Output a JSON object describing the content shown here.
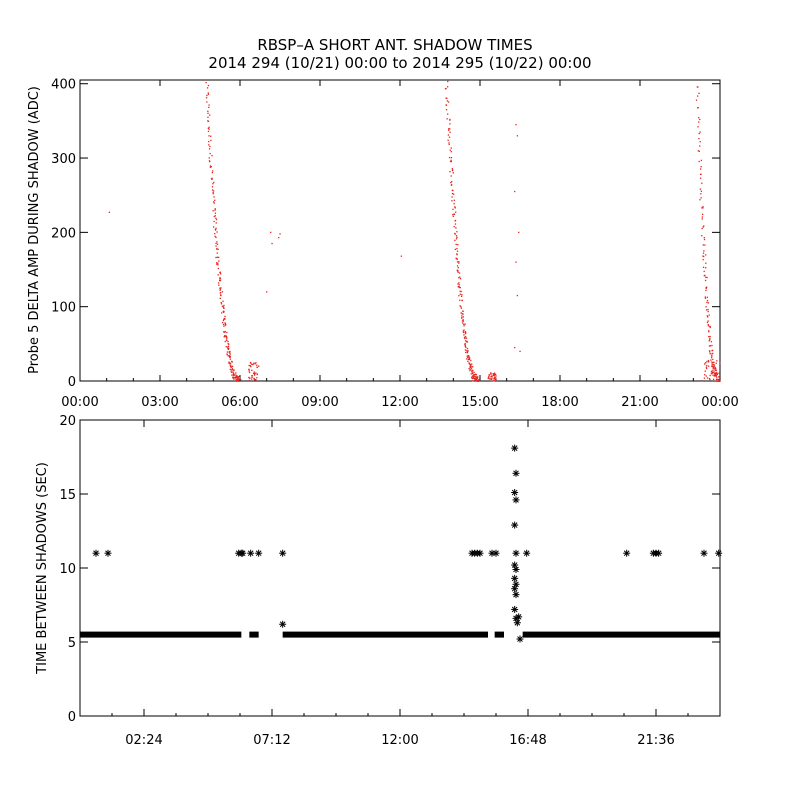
{
  "title": "RBSP–A SHORT ANT. SHADOW TIMES",
  "subtitle": "2014 294 (10/21) 00:00 to 2014 295 (10/22) 00:00",
  "colors": {
    "red": "#e8241e",
    "black": "#000000"
  },
  "chart_data": [
    {
      "type": "scatter",
      "ylabel": "Probe 5 DELTA AMP DURING SHADOW (ADC)",
      "xlim_hours": [
        0,
        24
      ],
      "ylim": [
        0,
        405
      ],
      "x_tick_labels": [
        "00:00",
        "03:00",
        "06:00",
        "09:00",
        "12:00",
        "15:00",
        "18:00",
        "21:00",
        "00:00"
      ],
      "y_ticks": [
        0,
        100,
        200,
        300,
        400
      ],
      "series": [
        {
          "color": "red",
          "curves": [
            {
              "x0": 4.75,
              "x1": 6.0,
              "ymax": 400,
              "n": 240,
              "power": 2.2
            },
            {
              "x0": 13.75,
              "x1": 14.95,
              "ymax": 400,
              "n": 240,
              "power": 2.2
            },
            {
              "x0": 23.15,
              "x1": 24.0,
              "ymax": 400,
              "n": 160,
              "power": 2.4
            }
          ],
          "isolated_points": [
            [
              1.1,
              227
            ],
            [
              7.15,
              200
            ],
            [
              7.2,
              185
            ],
            [
              7.45,
              193
            ],
            [
              7.5,
              198
            ],
            [
              7.0,
              120
            ],
            [
              12.05,
              168
            ],
            [
              16.35,
              345
            ],
            [
              16.4,
              330
            ],
            [
              16.3,
              255
            ],
            [
              16.45,
              200
            ],
            [
              16.35,
              160
            ],
            [
              16.4,
              115
            ],
            [
              16.3,
              45
            ],
            [
              16.5,
              40
            ],
            [
              15.35,
              8
            ],
            [
              6.55,
              10
            ],
            [
              6.7,
              20
            ],
            [
              6.45,
              5
            ]
          ],
          "bottom_clusters": [
            {
              "x0": 6.3,
              "x1": 6.65,
              "ymax": 25
            },
            {
              "x0": 15.3,
              "x1": 15.6,
              "ymax": 12
            },
            {
              "x0": 23.3,
              "x1": 24.0,
              "ymax": 30
            }
          ]
        }
      ]
    },
    {
      "type": "scatter",
      "ylabel": "TIME BETWEEN SHADOWS (SEC)",
      "xlim_hours": [
        0,
        24
      ],
      "ylim": [
        0,
        20
      ],
      "x_ticks": [
        2.4,
        7.2,
        12.0,
        16.8,
        21.6
      ],
      "x_tick_labels": [
        "02:24",
        "07:12",
        "12:00",
        "16:48",
        "21:36"
      ],
      "y_ticks": [
        0,
        5,
        10,
        15,
        20
      ],
      "series": [
        {
          "color": "black",
          "baseline": {
            "y": 5.5,
            "segments": [
              [
                0.0,
                6.05
              ],
              [
                6.35,
                6.7
              ],
              [
                7.6,
                15.3
              ],
              [
                15.55,
                15.9
              ],
              [
                16.6,
                24.0
              ]
            ]
          },
          "points": [
            [
              0.6,
              11
            ],
            [
              1.05,
              11
            ],
            [
              5.95,
              11
            ],
            [
              6.05,
              11
            ],
            [
              6.1,
              11
            ],
            [
              6.4,
              11
            ],
            [
              6.7,
              11
            ],
            [
              7.6,
              11
            ],
            [
              7.6,
              6.2
            ],
            [
              14.7,
              11
            ],
            [
              14.8,
              11
            ],
            [
              14.9,
              11
            ],
            [
              15.0,
              11
            ],
            [
              15.45,
              11
            ],
            [
              15.6,
              11
            ],
            [
              16.3,
              18.1
            ],
            [
              16.35,
              16.4
            ],
            [
              16.3,
              15.1
            ],
            [
              16.35,
              14.6
            ],
            [
              16.3,
              12.9
            ],
            [
              16.35,
              11
            ],
            [
              16.3,
              10.2
            ],
            [
              16.35,
              9.9
            ],
            [
              16.3,
              9.3
            ],
            [
              16.35,
              8.9
            ],
            [
              16.3,
              8.6
            ],
            [
              16.35,
              8.2
            ],
            [
              16.3,
              7.2
            ],
            [
              16.35,
              6.6
            ],
            [
              16.45,
              6.7
            ],
            [
              16.4,
              6.3
            ],
            [
              16.5,
              5.2
            ],
            [
              16.75,
              11
            ],
            [
              20.5,
              11
            ],
            [
              21.5,
              11
            ],
            [
              21.6,
              11
            ],
            [
              21.7,
              11
            ],
            [
              23.4,
              11
            ],
            [
              23.95,
              11
            ]
          ]
        }
      ]
    }
  ]
}
